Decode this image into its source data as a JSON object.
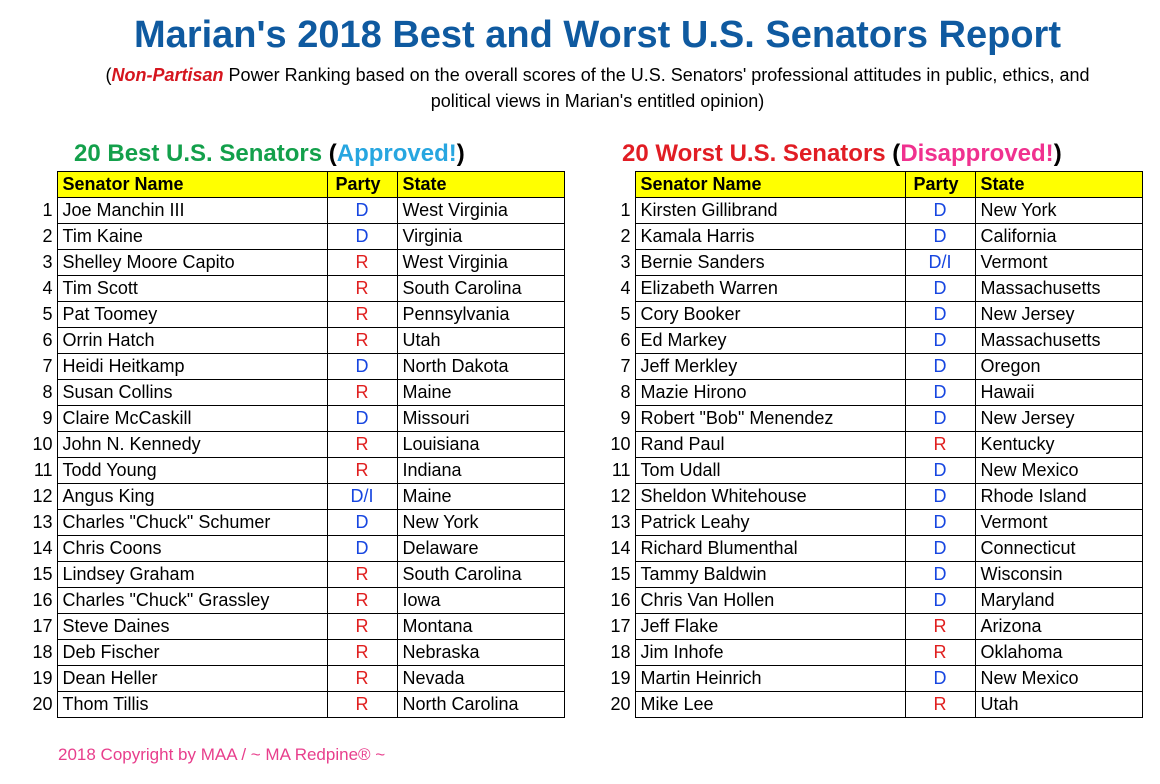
{
  "title": "Marian's 2018 Best and Worst U.S. Senators Report",
  "subtitle": {
    "open": "(",
    "emph": "Non-Partisan",
    "rest": " Power Ranking based on the overall scores of the U.S. Senators' professional attitudes in public, ethics, and political views in Marian's entitled opinion)"
  },
  "best": {
    "heading_main": "20 Best U.S. Senators",
    "heading_open": " (",
    "heading_tag": "Approved!",
    "heading_close": ")",
    "columns": [
      "Senator Name",
      "Party",
      "State"
    ],
    "rows": [
      [
        "1",
        "Joe Manchin III",
        "D",
        "West Virginia"
      ],
      [
        "2",
        "Tim Kaine",
        "D",
        "Virginia"
      ],
      [
        "3",
        "Shelley Moore Capito",
        "R",
        "West Virginia"
      ],
      [
        "4",
        "Tim Scott",
        "R",
        "South Carolina"
      ],
      [
        "5",
        "Pat Toomey",
        "R",
        "Pennsylvania"
      ],
      [
        "6",
        "Orrin Hatch",
        "R",
        "Utah"
      ],
      [
        "7",
        "Heidi Heitkamp",
        "D",
        "North Dakota"
      ],
      [
        "8",
        "Susan Collins",
        "R",
        "Maine"
      ],
      [
        "9",
        "Claire McCaskill",
        "D",
        "Missouri"
      ],
      [
        "10",
        "John N. Kennedy",
        "R",
        "Louisiana"
      ],
      [
        "11",
        "Todd Young",
        "R",
        "Indiana"
      ],
      [
        "12",
        "Angus King",
        "D/I",
        "Maine"
      ],
      [
        "13",
        "Charles \"Chuck\" Schumer",
        "D",
        "New York"
      ],
      [
        "14",
        "Chris Coons",
        "D",
        "Delaware"
      ],
      [
        "15",
        "Lindsey Graham",
        "R",
        "South Carolina"
      ],
      [
        "16",
        "Charles \"Chuck\" Grassley",
        "R",
        "Iowa"
      ],
      [
        "17",
        "Steve Daines",
        "R",
        "Montana"
      ],
      [
        "18",
        "Deb Fischer",
        "R",
        "Nebraska"
      ],
      [
        "19",
        "Dean Heller",
        "R",
        "Nevada"
      ],
      [
        "20",
        "Thom Tillis",
        "R",
        "North Carolina"
      ]
    ]
  },
  "worst": {
    "heading_main": "20 Worst U.S. Senators",
    "heading_open": " (",
    "heading_tag": "Disapproved!",
    "heading_close": ")",
    "columns": [
      "Senator Name",
      "Party",
      "State"
    ],
    "rows": [
      [
        "1",
        "Kirsten Gillibrand",
        "D",
        "New York"
      ],
      [
        "2",
        "Kamala Harris",
        "D",
        "California"
      ],
      [
        "3",
        "Bernie Sanders",
        "D/I",
        "Vermont"
      ],
      [
        "4",
        "Elizabeth Warren",
        "D",
        "Massachusetts"
      ],
      [
        "5",
        "Cory Booker",
        "D",
        "New Jersey"
      ],
      [
        "6",
        "Ed Markey",
        "D",
        "Massachusetts"
      ],
      [
        "7",
        "Jeff Merkley",
        "D",
        "Oregon"
      ],
      [
        "8",
        "Mazie Hirono",
        "D",
        "Hawaii"
      ],
      [
        "9",
        "Robert \"Bob\" Menendez",
        "D",
        "New Jersey"
      ],
      [
        "10",
        "Rand Paul",
        "R",
        "Kentucky"
      ],
      [
        "11",
        "Tom Udall",
        "D",
        "New Mexico"
      ],
      [
        "12",
        "Sheldon Whitehouse",
        "D",
        "Rhode Island"
      ],
      [
        "13",
        "Patrick Leahy",
        "D",
        "Vermont"
      ],
      [
        "14",
        "Richard Blumenthal",
        "D",
        "Connecticut"
      ],
      [
        "15",
        "Tammy Baldwin",
        "D",
        "Wisconsin"
      ],
      [
        "16",
        "Chris Van Hollen",
        "D",
        "Maryland"
      ],
      [
        "17",
        "Jeff Flake",
        "R",
        "Arizona"
      ],
      [
        "18",
        "Jim Inhofe",
        "R",
        "Oklahoma"
      ],
      [
        "19",
        "Martin Heinrich",
        "D",
        "New Mexico"
      ],
      [
        "20",
        "Mike Lee",
        "R",
        "Utah"
      ]
    ]
  },
  "footer": "2018 Copyright by MAA / ~ MA Redpine® ~",
  "colors": {
    "title": "#0f5aa0",
    "emph": "#d5151e",
    "best_heading": "#13a04b",
    "approved": "#27a6e0",
    "worst_heading": "#e11d24",
    "disapproved": "#f0318f",
    "header_fill": "#ffff00",
    "party_D": "#1746e0",
    "party_R": "#e01f1f",
    "footer": "#e83e8c"
  }
}
